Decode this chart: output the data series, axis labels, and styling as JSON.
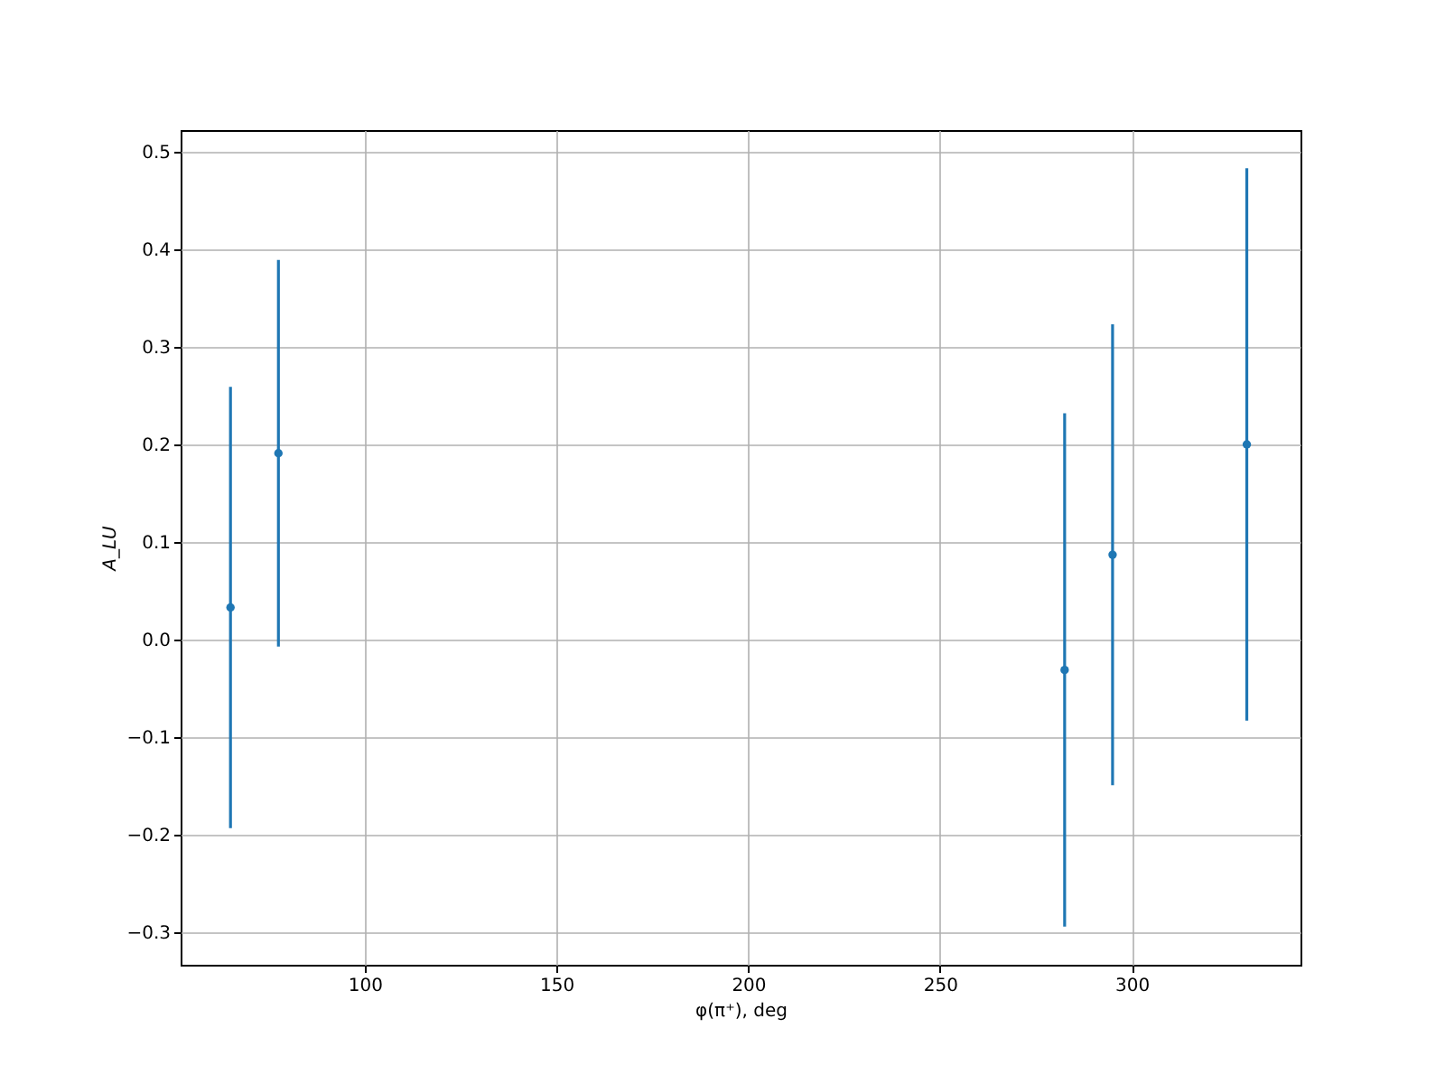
{
  "chart_data": {
    "type": "scatter",
    "xlabel": "φ(π⁺), deg",
    "ylabel": "A_LU",
    "x": [
      65,
      77.5,
      282.5,
      295,
      330
    ],
    "series": [
      {
        "color": "#1f77b4",
        "values": [
          0.033,
          0.191,
          -0.031,
          0.087,
          0.2
        ],
        "errors": [
          0.226,
          0.198,
          0.263,
          0.236,
          0.283
        ]
      }
    ],
    "xlim": [
      52,
      344
    ],
    "ylim": [
      -0.333,
      0.522
    ],
    "xticks": [
      100,
      150,
      200,
      250,
      300
    ],
    "yticks": [
      -0.3,
      -0.2,
      -0.1,
      {
        "value": 0,
        "label": "0.0"
      },
      0.1,
      0.2,
      0.3,
      0.4,
      0.5
    ],
    "grid": true,
    "marker": "circle"
  }
}
